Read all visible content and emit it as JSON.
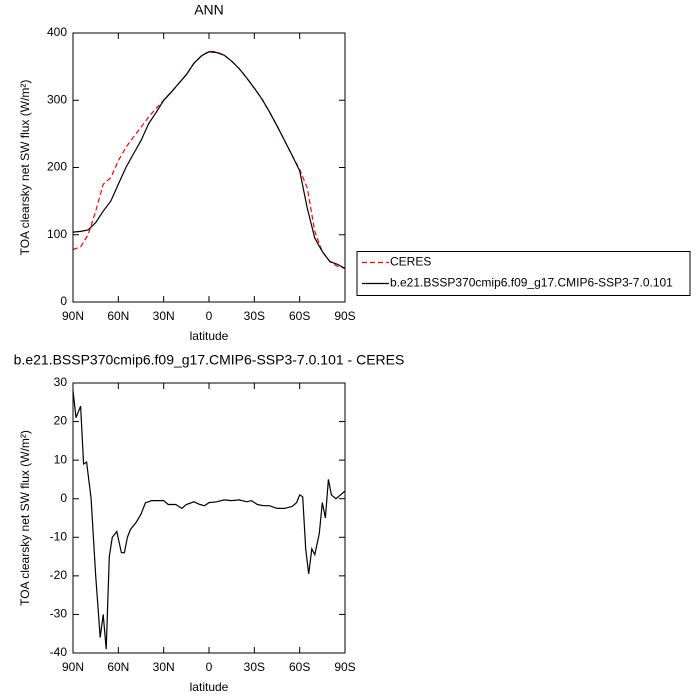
{
  "chart_data": [
    {
      "type": "line",
      "title": "ANN",
      "xlabel": "latitude",
      "ylabel": "TOA clearsky net SW flux (W/m²)",
      "x": [
        90,
        85,
        80,
        75,
        70,
        65,
        60,
        55,
        50,
        45,
        40,
        35,
        30,
        25,
        20,
        15,
        10,
        5,
        0,
        -5,
        -10,
        -15,
        -20,
        -25,
        -30,
        -35,
        -40,
        -45,
        -50,
        -55,
        -60,
        -65,
        -70,
        -75,
        -80,
        -85,
        -90
      ],
      "series": [
        {
          "name": "CERES",
          "color": "#ff0000",
          "dashed": true,
          "values": [
            78,
            82,
            100,
            135,
            175,
            185,
            210,
            230,
            245,
            260,
            275,
            288,
            300,
            312,
            325,
            338,
            355,
            366,
            373,
            372,
            367,
            358,
            347,
            333,
            318,
            302,
            283,
            262,
            240,
            218,
            197,
            170,
            105,
            75,
            60,
            53,
            50
          ]
        },
        {
          "name": "b.e21.BSSP370cmip6.f09_g17.CMIP6-SSP3-7.0.101",
          "color": "#000000",
          "dashed": false,
          "values": [
            104,
            105,
            107,
            118,
            135,
            150,
            175,
            200,
            220,
            240,
            265,
            282,
            300,
            312,
            325,
            338,
            355,
            366,
            372,
            371,
            367,
            358,
            347,
            333,
            318,
            302,
            283,
            262,
            240,
            218,
            195,
            140,
            95,
            75,
            60,
            56,
            50
          ]
        }
      ],
      "xlim": [
        90,
        -90
      ],
      "xticks": [
        {
          "value": 90,
          "label": "90N"
        },
        {
          "value": 60,
          "label": "60N"
        },
        {
          "value": 30,
          "label": "30N"
        },
        0,
        {
          "value": -30,
          "label": "30S"
        },
        {
          "value": -60,
          "label": "60S"
        },
        {
          "value": -90,
          "label": "90S"
        }
      ],
      "ylim": [
        0,
        400
      ],
      "yticks": [
        0,
        100,
        200,
        300,
        400
      ],
      "legend": "right"
    },
    {
      "type": "line",
      "title": "b.e21.BSSP370cmip6.f09_g17.CMIP6-SSP3-7.0.101 - CERES",
      "xlabel": "latitude",
      "ylabel": "TOA clearsky net SW flux (W/m²)",
      "x": [
        90,
        88,
        85,
        83,
        81,
        78,
        75,
        72,
        70,
        68,
        66,
        64,
        61,
        58,
        56,
        54,
        52,
        48,
        45,
        42,
        40,
        38,
        35,
        30,
        27,
        22,
        18,
        15,
        10,
        6,
        3,
        0,
        -5,
        -10,
        -15,
        -20,
        -25,
        -28,
        -32,
        -36,
        -40,
        -45,
        -50,
        -55,
        -58,
        -60,
        -62,
        -64,
        -66,
        -68,
        -70,
        -73,
        -75,
        -77,
        -79,
        -81,
        -84,
        -87,
        -90
      ],
      "series": [
        {
          "color": "#000000",
          "dashed": false,
          "values": [
            28,
            21,
            24,
            9,
            9.5,
            0,
            -20,
            -36,
            -30,
            -39,
            -15,
            -10,
            -8.5,
            -14,
            -14,
            -10,
            -8,
            -6,
            -4,
            -1,
            -0.8,
            -0.5,
            -0.5,
            -0.5,
            -1.5,
            -1.5,
            -2.5,
            -1.5,
            -0.8,
            -1.5,
            -1.8,
            -1,
            -0.8,
            -0.3,
            -0.5,
            -0.3,
            -0.8,
            -0.5,
            -1.5,
            -1.8,
            -1.8,
            -2.5,
            -2.5,
            -2,
            -1,
            1,
            0.5,
            -13,
            -19.5,
            -13,
            -14.5,
            -9,
            -1,
            -5,
            5,
            1,
            0,
            1,
            2
          ]
        }
      ],
      "xlim": [
        90,
        -90
      ],
      "xticks": [
        {
          "value": 90,
          "label": "90N"
        },
        {
          "value": 60,
          "label": "60N"
        },
        {
          "value": 30,
          "label": "30N"
        },
        0,
        {
          "value": -30,
          "label": "30S"
        },
        {
          "value": -60,
          "label": "60S"
        },
        {
          "value": -90,
          "label": "90S"
        }
      ],
      "ylim": [
        -40,
        30
      ],
      "yticks": [
        -40,
        -30,
        -20,
        -10,
        0,
        10,
        20,
        30
      ]
    }
  ]
}
